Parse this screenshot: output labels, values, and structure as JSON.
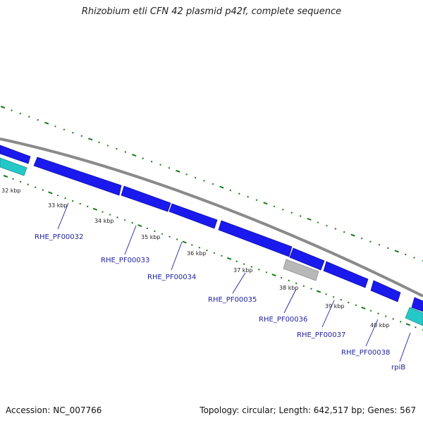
{
  "header": {
    "title": "Rhizobium etli CFN 42 plasmid p42f, complete sequence"
  },
  "footer": {
    "accession": "Accession: NC_007766",
    "stats": "Topology: circular; Length: 642,517 bp; Genes: 567"
  },
  "colors": {
    "forward_gene": "#1a1aee",
    "reverse_gene": "#25c8c8",
    "pseudo_gene": "#b8b8b8",
    "backbone": "#8a8a8a",
    "tick": "#1a7a1a",
    "label": "#1f1fa0"
  },
  "kbp_labels": [
    "32 kbp",
    "33 kbp",
    "34 kbp",
    "35 kbp",
    "36 kbp",
    "37 kbp",
    "38 kbp",
    "39 kbp",
    "40 kbp"
  ],
  "gene_labels": [
    "RHE_PF00032",
    "RHE_PF00033",
    "RHE_PF00034",
    "RHE_PF00035",
    "RHE_PF00036",
    "RHE_PF00037",
    "RHE_PF00038",
    "rpiB"
  ]
}
